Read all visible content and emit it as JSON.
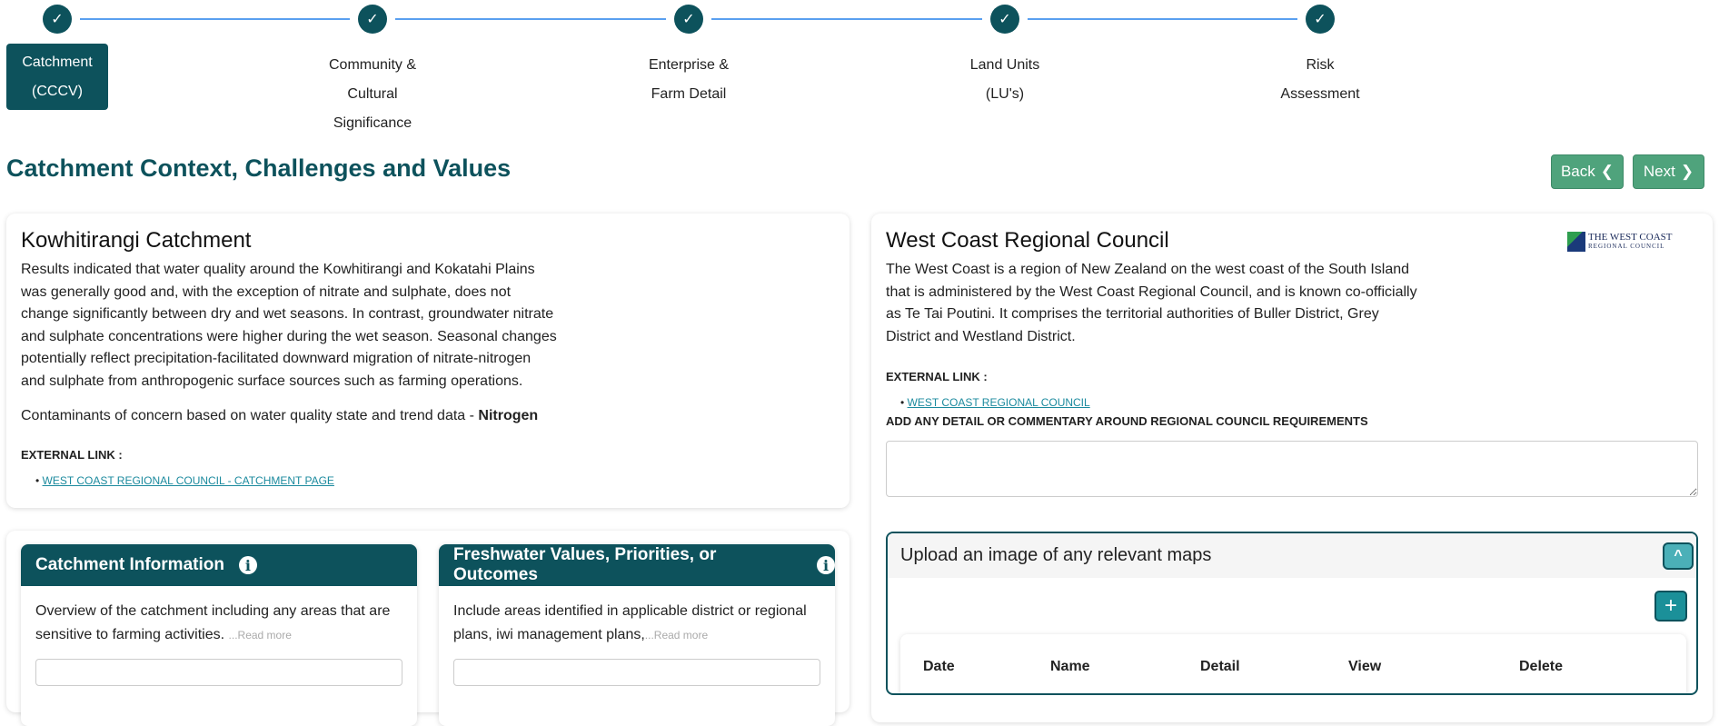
{
  "stepper": {
    "steps": [
      {
        "lines": [
          "Catchment",
          "(CCCV)"
        ],
        "active": true,
        "done": true
      },
      {
        "lines": [
          "Community &",
          "Cultural",
          "Significance"
        ],
        "done": true
      },
      {
        "lines": [
          "Enterprise &",
          "Farm Detail"
        ],
        "done": true
      },
      {
        "lines": [
          "Land Units",
          "(LU's)"
        ],
        "done": true
      },
      {
        "lines": [
          "Risk",
          "Assessment"
        ],
        "done": true
      }
    ],
    "check_icon": "✓"
  },
  "page_title": "Catchment Context, Challenges and Values",
  "nav": {
    "back": "Back",
    "next": "Next"
  },
  "catchment_card": {
    "title": "Kowhitirangi Catchment",
    "body": "Results indicated that water quality around the Kowhitirangi and Kokatahi Plains was generally good and, with the exception of nitrate and sulphate, does not change significantly between dry and wet seasons. In contrast, groundwater nitrate and sulphate concentrations were higher during the wet season. Seasonal changes potentially reflect precipitation-facilitated downward migration of nitrate-nitrogen and sulphate from anthropogenic surface sources such as farming operations.",
    "contaminants_prefix": "Contaminants of concern based on water quality state and trend data - ",
    "contaminant": "Nitrogen",
    "external_label": "EXTERNAL LINK :",
    "link": "WEST COAST REGIONAL COUNCIL - CATCHMENT PAGE"
  },
  "council_card": {
    "title": "West Coast Regional Council",
    "logo_text": [
      "THE WEST COAST",
      "REGIONAL COUNCIL"
    ],
    "body": "The West Coast is a region of New Zealand on the west coast of the South Island that is administered by the West Coast Regional Council, and is known co-officially as Te Tai Poutini. It comprises the territorial authorities of Buller District, Grey District and Westland District.",
    "external_label": "EXTERNAL LINK :",
    "link": "WEST COAST REGIONAL COUNCIL",
    "commentary_label": "ADD ANY DETAIL OR COMMENTARY AROUND REGIONAL COUNCIL REQUIREMENTS",
    "commentary_value": ""
  },
  "upload": {
    "title": "Upload an image of any relevant maps",
    "columns": [
      "Date",
      "Name",
      "Detail",
      "View",
      "Delete"
    ]
  },
  "panels": [
    {
      "title": "Catchment Information",
      "text": "Overview of the catchment including any areas that are sensitive to farming activities. ",
      "more": "...Read more"
    },
    {
      "title": "Freshwater Values, Priorities, or Outcomes",
      "text": "Include areas identified in applicable district or regional plans, iwi management plans,",
      "more": "...Read more"
    }
  ],
  "colors": {
    "primary": "#0d525c",
    "button": "#4fa37c",
    "link": "#1b8a9e",
    "stepper_line": "#5aa0f0"
  }
}
